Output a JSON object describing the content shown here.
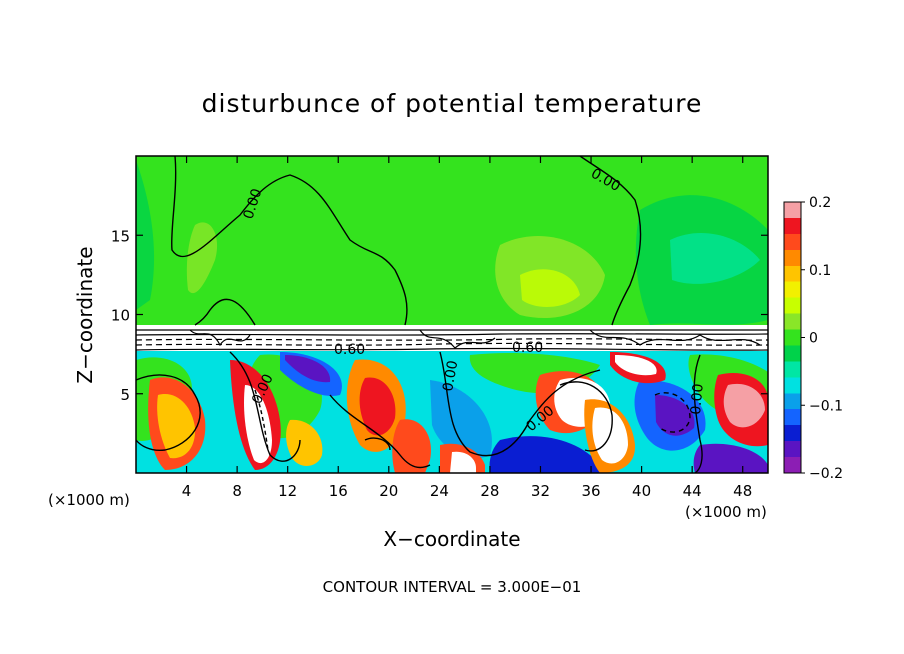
{
  "chart_data": {
    "type": "heatmap",
    "title": "disturbunce of potential temperature",
    "xlabel": "X−coordinate",
    "ylabel": "Z−coordinate",
    "x_unit": "(×1000 m)",
    "x_unit_right": "(×1000 m)",
    "xlim": [
      0,
      50
    ],
    "ylim": [
      0,
      20
    ],
    "x_ticks": [
      4,
      8,
      12,
      16,
      20,
      24,
      28,
      32,
      36,
      40,
      44,
      48
    ],
    "x_tick_labels": [
      "4",
      "8",
      "12",
      "16",
      "20",
      "24",
      "28",
      "32",
      "36",
      "40",
      "44",
      "48"
    ],
    "y_ticks": [
      5,
      10,
      15
    ],
    "y_tick_labels": [
      "5",
      "10",
      "15"
    ],
    "colorbar": {
      "range": [
        -0.2,
        0.2
      ],
      "ticks": [
        0.2,
        0.1,
        0,
        -0.1,
        -0.2
      ],
      "tick_labels": [
        "0.2",
        "0.1",
        "0",
        "−0.1",
        "−0.2"
      ],
      "colors": [
        "#f5a0a5",
        "#ee1520",
        "#ff4a1c",
        "#ff8a00",
        "#ffc400",
        "#f2f000",
        "#c8ff00",
        "#8ae628",
        "#34e31e",
        "#00d24a",
        "#00e6a4",
        "#00e1e1",
        "#0aa0ea",
        "#1464ff",
        "#0a1ed2",
        "#5a14c2",
        "#8c1eb4"
      ]
    },
    "contour_labels": [
      "0.00",
      "0.00",
      "0.00",
      "0.00",
      "0.00",
      "0.00",
      "0.60",
      "0.60"
    ],
    "footer": "CONTOUR INTERVAL = 3.000E−01"
  }
}
